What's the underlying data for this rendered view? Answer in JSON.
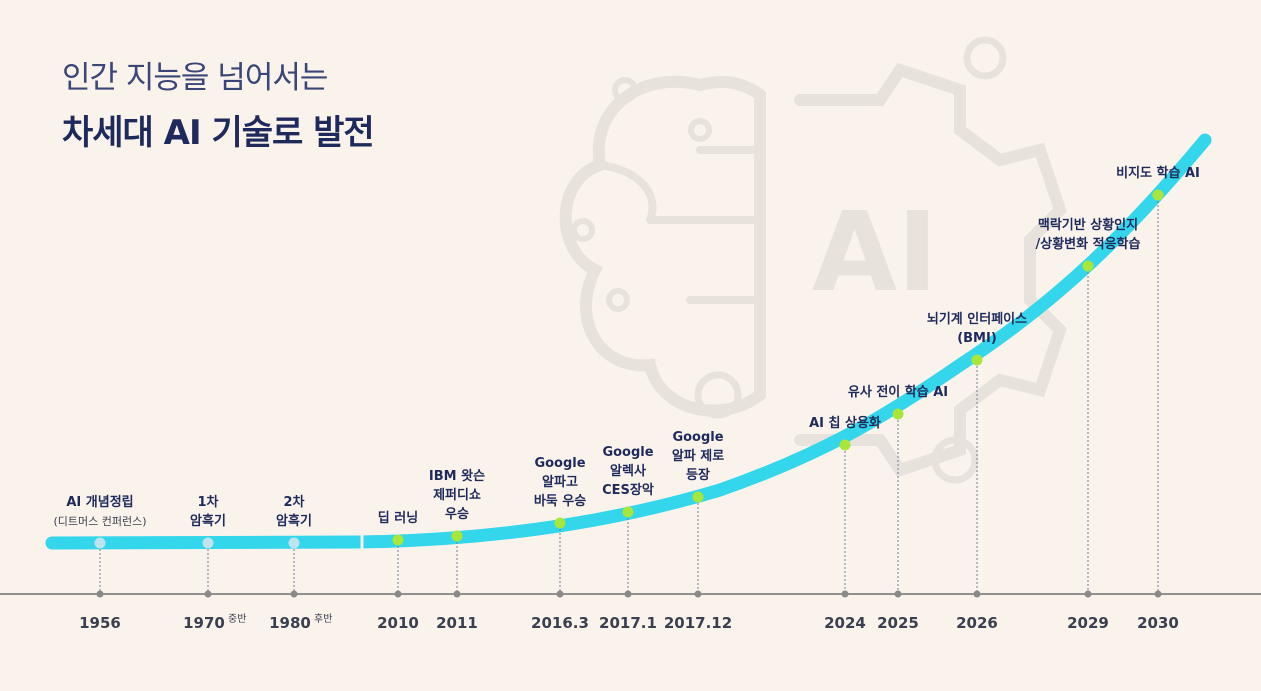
{
  "title": {
    "line1": "인간 지능을 넘어서는",
    "line2": "차세대 AI 기술로 발전"
  },
  "colors": {
    "background": "#faf3ec",
    "curve": "#33d6ea",
    "milestone_dot_past": "#bfe4ef",
    "milestone_dot_future": "#a8e63a",
    "title": "#1f2a5c",
    "label": "#1f2a5c",
    "axis": "#9a9a9a",
    "watermark": "#e6e1dc"
  },
  "watermark": {
    "text": "AI",
    "icons": [
      "brain-circuit-icon",
      "gear-icon"
    ]
  },
  "timeline": [
    {
      "year": "1956",
      "suffix": "",
      "label": [
        "AI 개념정립"
      ],
      "sublabel": "(디트머스 컨퍼런스)",
      "dot": "past"
    },
    {
      "year": "1970",
      "suffix": "중반",
      "label": [
        "1차",
        "암흑기"
      ],
      "sublabel": "",
      "dot": "past"
    },
    {
      "year": "1980",
      "suffix": "후반",
      "label": [
        "2차",
        "암흑기"
      ],
      "sublabel": "",
      "dot": "past"
    },
    {
      "year": "2010",
      "suffix": "",
      "label": [
        "딥 러닝"
      ],
      "sublabel": "",
      "dot": "future"
    },
    {
      "year": "2011",
      "suffix": "",
      "label": [
        "IBM 왓슨",
        "제퍼디쇼",
        "우승"
      ],
      "sublabel": "",
      "dot": "future"
    },
    {
      "year": "2016.3",
      "suffix": "",
      "label": [
        "Google",
        "알파고",
        "바둑 우승"
      ],
      "sublabel": "",
      "dot": "future"
    },
    {
      "year": "2017.1",
      "suffix": "",
      "label": [
        "Google",
        "알렉사",
        "CES장악"
      ],
      "sublabel": "",
      "dot": "future"
    },
    {
      "year": "2017.12",
      "suffix": "",
      "label": [
        "Google",
        "알파 제로",
        "등장"
      ],
      "sublabel": "",
      "dot": "future"
    },
    {
      "year": "2024",
      "suffix": "",
      "label": [
        "AI 칩 상용화"
      ],
      "sublabel": "",
      "dot": "future"
    },
    {
      "year": "2025",
      "suffix": "",
      "label": [
        "유사 전이 학습 AI"
      ],
      "sublabel": "",
      "dot": "future"
    },
    {
      "year": "2026",
      "suffix": "",
      "label": [
        "뇌기계 인터페이스",
        "(BMI)"
      ],
      "sublabel": "",
      "dot": "future"
    },
    {
      "year": "2029",
      "suffix": "",
      "label": [
        "맥락기반 상황인지",
        "/상황변화 적응학습"
      ],
      "sublabel": "",
      "dot": "future"
    },
    {
      "year": "2030",
      "suffix": "",
      "label": [
        "비지도 학습 AI"
      ],
      "sublabel": "",
      "dot": "future"
    }
  ]
}
